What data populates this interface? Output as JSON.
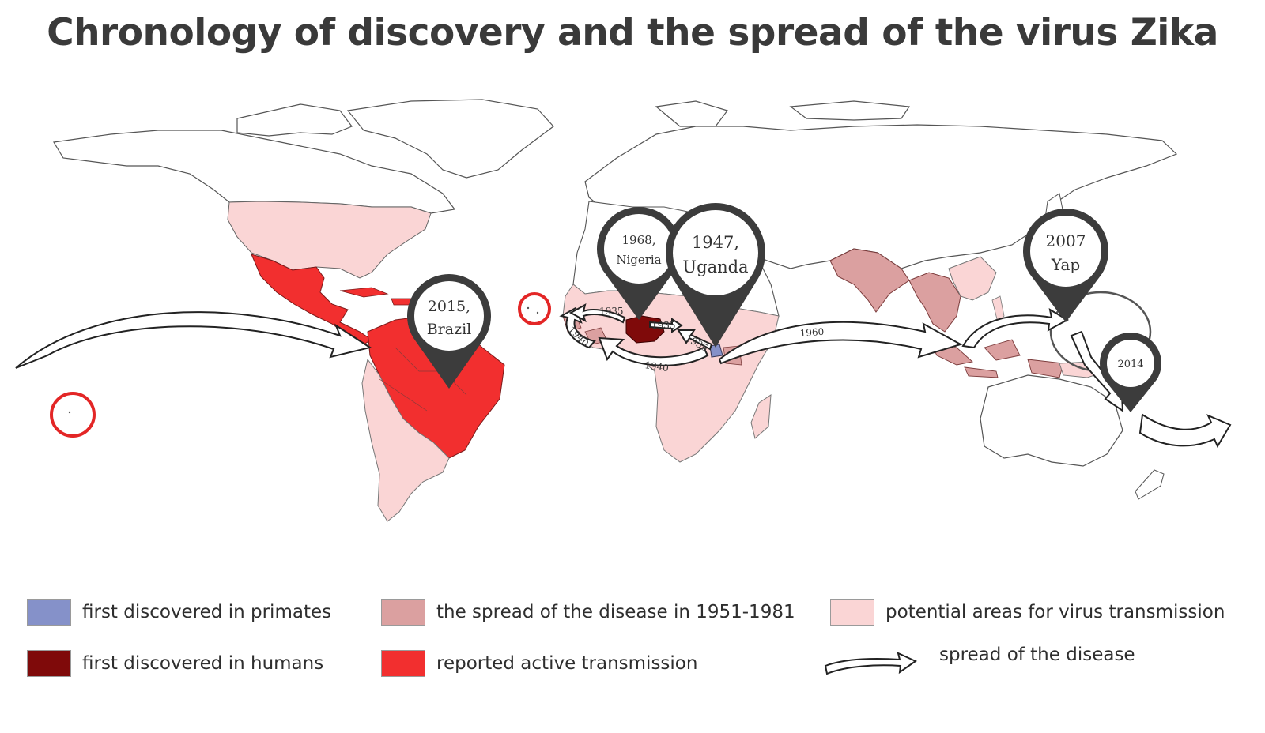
{
  "title": "Chronology of discovery and the spread of the virus Zika",
  "colors": {
    "primates": "#8591c9",
    "humans": "#7f0a0a",
    "spread_1951_1981": "#dba0a0",
    "active_transmission": "#f22f2f",
    "potential_areas": "#fad5d5",
    "marker": "#3c3c3c",
    "land_outline": "#555555",
    "circle_highlight": "#e32626"
  },
  "markers": [
    {
      "id": "nigeria",
      "line1": "1968,",
      "line2": "Nigeria"
    },
    {
      "id": "uganda",
      "line1": "1947,",
      "line2": "Uganda"
    },
    {
      "id": "brazil",
      "line1": "2015,",
      "line2": "Brazil"
    },
    {
      "id": "yap",
      "line1": "2007",
      "line2": "Yap"
    },
    {
      "id": "2014",
      "line1": "2014",
      "line2": ""
    }
  ],
  "arrow_labels": {
    "a1935_top": "1935",
    "a1935_right": "1935",
    "a1935_uganda": "1935",
    "a1940_left": "1940",
    "a1940_bottom": "1940",
    "a1960": "1960"
  },
  "legend": {
    "primates": "first discovered in primates",
    "humans": "first discovered in  humans",
    "spread": "the spread of the disease in 1951-1981",
    "active": "reported active transmission",
    "potential": "potential areas for virus transmission",
    "arrow": "spread  of the disease"
  }
}
